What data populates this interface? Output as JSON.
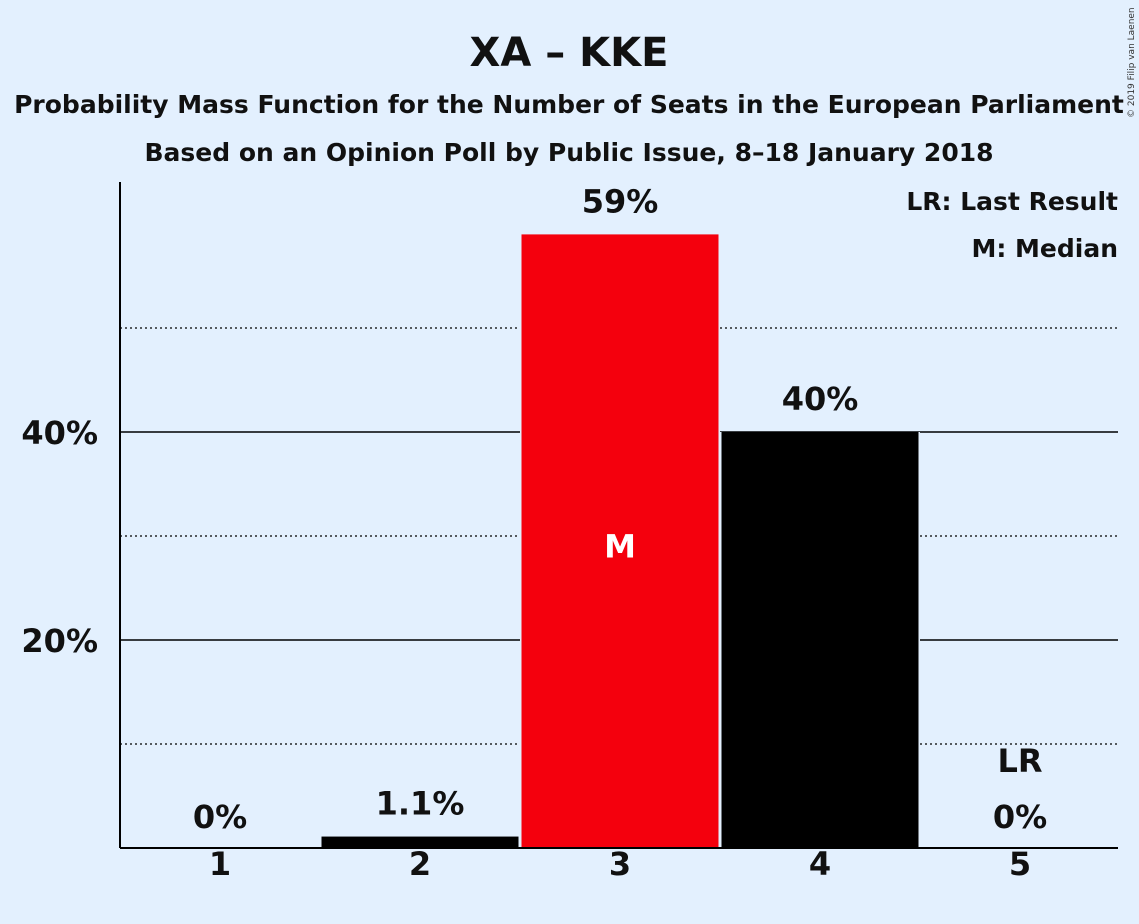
{
  "copyright": "© 2019 Filip van Laenen",
  "chart_data": {
    "type": "bar",
    "title": "XA – KKE",
    "subtitle_1": "Probability Mass Function for the Number of Seats in the European Parliament",
    "subtitle_2": "Based on an Opinion Poll by Public Issue, 8–18 January 2018",
    "categories": [
      "1",
      "2",
      "3",
      "4",
      "5"
    ],
    "values": [
      0,
      1.1,
      59,
      40,
      0
    ],
    "value_labels": [
      "0%",
      "1.1%",
      "59%",
      "40%",
      "0%"
    ],
    "bar_colors": [
      "#000000",
      "#000000",
      "#f4000d",
      "#000000",
      "#000000"
    ],
    "ylim": [
      0,
      64
    ],
    "y_ticks": [
      {
        "value": 20,
        "label": "20%"
      },
      {
        "value": 40,
        "label": "40%"
      }
    ],
    "minor_gridlines": [
      10,
      30,
      50
    ],
    "median_category": "3",
    "median_marker": "M",
    "last_result_category": "5",
    "last_result_marker": "LR",
    "legend": {
      "placement": "top-right",
      "items": [
        "LR: Last Result",
        "M: Median"
      ]
    },
    "grid": true
  }
}
